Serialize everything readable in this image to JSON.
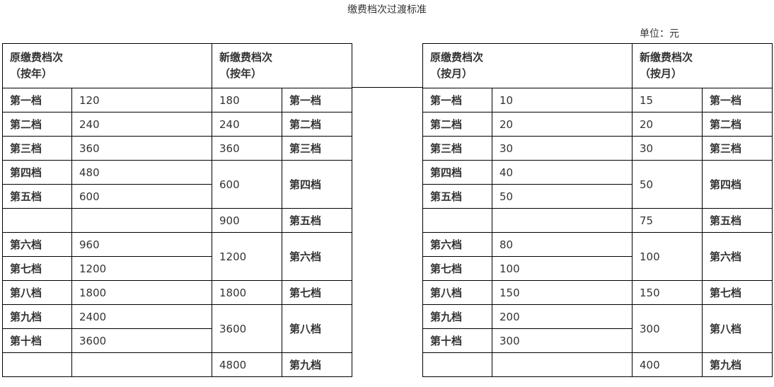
{
  "title": "缴费档次过渡标准",
  "unit": "单位：元",
  "tables": [
    {
      "orig_header": [
        "原缴费档次",
        "（按年）"
      ],
      "new_header": [
        "新缴费档次",
        "（按年）"
      ],
      "orig_rows": [
        [
          "第一档",
          "120"
        ],
        [
          "第二档",
          "240"
        ],
        [
          "第三档",
          "360"
        ],
        [
          "第四档",
          "480"
        ],
        [
          "第五档",
          "600"
        ],
        [
          "",
          ""
        ],
        [
          "第六档",
          "960"
        ],
        [
          "第七档",
          "1200"
        ],
        [
          "第八档",
          "1800"
        ],
        [
          "第九档",
          "2400"
        ],
        [
          "第十档",
          "3600"
        ],
        [
          "",
          ""
        ]
      ],
      "new_rows": [
        {
          "value": "180",
          "label": "第一档",
          "span": 1
        },
        {
          "value": "240",
          "label": "第二档",
          "span": 1
        },
        {
          "value": "360",
          "label": "第三档",
          "span": 1
        },
        {
          "value": "600",
          "label": "第四档",
          "span": 2
        },
        {
          "value": "900",
          "label": "第五档",
          "span": 1
        },
        {
          "value": "1200",
          "label": "第六档",
          "span": 2
        },
        {
          "value": "1800",
          "label": "第七档",
          "span": 1
        },
        {
          "value": "3600",
          "label": "第八档",
          "span": 2
        },
        {
          "value": "4800",
          "label": "第九档",
          "span": 1
        }
      ]
    },
    {
      "orig_header": [
        "原缴费档次",
        "（按月）"
      ],
      "new_header": [
        "新缴费档次",
        "（按月）"
      ],
      "orig_rows": [
        [
          "第一档",
          "10"
        ],
        [
          "第二档",
          "20"
        ],
        [
          "第三档",
          "30"
        ],
        [
          "第四档",
          "40"
        ],
        [
          "第五档",
          "50"
        ],
        [
          "",
          ""
        ],
        [
          "第六档",
          "80"
        ],
        [
          "第七档",
          "100"
        ],
        [
          "第八档",
          "150"
        ],
        [
          "第九档",
          "200"
        ],
        [
          "第十档",
          "300"
        ],
        [
          "",
          ""
        ]
      ],
      "new_rows": [
        {
          "value": "15",
          "label": "第一档",
          "span": 1
        },
        {
          "value": "20",
          "label": "第二档",
          "span": 1
        },
        {
          "value": "30",
          "label": "第三档",
          "span": 1
        },
        {
          "value": "50",
          "label": "第四档",
          "span": 2
        },
        {
          "value": "75",
          "label": "第五档",
          "span": 1
        },
        {
          "value": "100",
          "label": "第六档",
          "span": 2
        },
        {
          "value": "150",
          "label": "第七档",
          "span": 1
        },
        {
          "value": "300",
          "label": "第八档",
          "span": 2
        },
        {
          "value": "400",
          "label": "第九档",
          "span": 1
        }
      ]
    }
  ]
}
